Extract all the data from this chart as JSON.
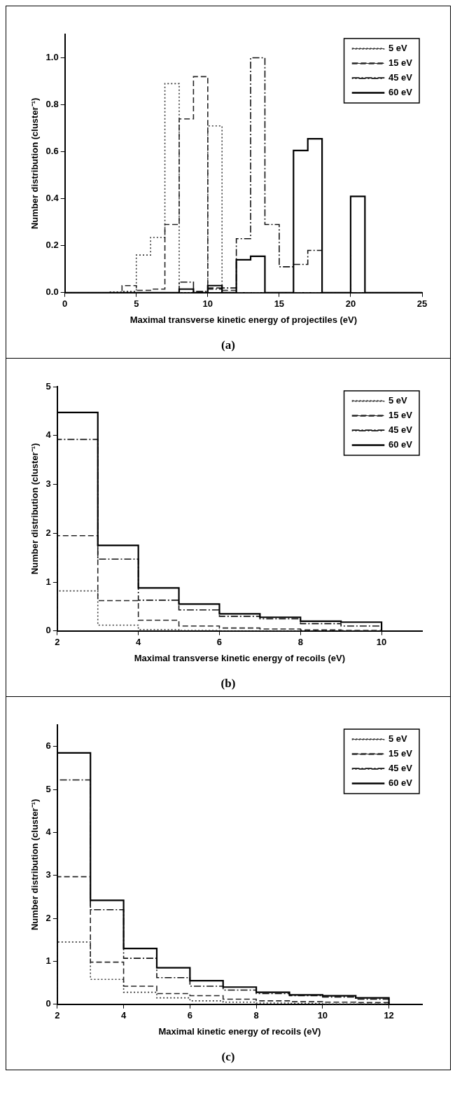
{
  "chart_data": [
    {
      "type": "histogram",
      "xlabel": "Maximal transverse kinetic energy of projectiles (eV)",
      "ylabel": "Number distribution (cluster⁻¹)",
      "bins": [
        0,
        1,
        2,
        3,
        4,
        5,
        6,
        7,
        8,
        9,
        10,
        11,
        12,
        13,
        14,
        15,
        16,
        17,
        18,
        19,
        20,
        21,
        22,
        23,
        24,
        25
      ],
      "series": [
        {
          "name": "5 eV",
          "color": "#3a3a3a",
          "line_style": "dotted",
          "values": [
            0,
            0,
            0,
            0.003,
            0.005,
            0.16,
            0.235,
            0.89,
            0,
            0,
            0.71,
            0,
            0,
            0,
            0,
            0,
            0,
            0,
            0,
            0,
            0,
            0,
            0,
            0,
            0
          ]
        },
        {
          "name": "15 eV",
          "color": "#262626",
          "line_style": "dashed",
          "values": [
            0,
            0,
            0,
            0,
            0.03,
            0.01,
            0.015,
            0.29,
            0.74,
            0.92,
            0.02,
            0.01,
            0,
            0,
            0,
            0,
            0,
            0,
            0,
            0,
            0,
            0,
            0,
            0,
            0
          ]
        },
        {
          "name": "45 eV",
          "color": "#131313",
          "line_style": "dashdot",
          "values": [
            0,
            0,
            0,
            0,
            0,
            0,
            0,
            0,
            0.045,
            0.005,
            0.015,
            0.02,
            0.23,
            1.0,
            0.29,
            0.11,
            0.12,
            0.18,
            0,
            0,
            0,
            0,
            0,
            0,
            0
          ]
        },
        {
          "name": "60 eV",
          "color": "#000000",
          "line_style": "solid",
          "values": [
            0,
            0,
            0,
            0,
            0,
            0,
            0,
            0,
            0.015,
            0,
            0.03,
            0,
            0.14,
            0.155,
            0,
            0,
            0.605,
            0.655,
            0,
            0,
            0.41,
            0,
            0,
            0,
            0
          ]
        }
      ],
      "xlim": [
        0,
        25
      ],
      "xticks": [
        0,
        5,
        10,
        15,
        20,
        25
      ],
      "ylim": [
        0,
        1.1
      ],
      "yticks": [
        {
          "value": 0,
          "label": "0.0"
        },
        {
          "value": 0.2,
          "label": "0.2"
        },
        {
          "value": 0.4,
          "label": "0.4"
        },
        {
          "value": 0.6,
          "label": "0.6"
        },
        {
          "value": 0.8,
          "label": "0.8"
        },
        {
          "value": 1,
          "label": "1.0"
        }
      ],
      "grid": false,
      "legend": "top right",
      "annotations": [
        "(a)"
      ]
    },
    {
      "type": "histogram",
      "xlabel": "Maximal transverse kinetic energy of recoils (eV)",
      "ylabel": "Number distribution (cluster⁻¹)",
      "bins": [
        2,
        3,
        4,
        5,
        6,
        7,
        8,
        9,
        10
      ],
      "series": [
        {
          "name": "5 eV",
          "color": "#3a3a3a",
          "line_style": "dotted",
          "values": [
            0.82,
            0.12,
            0.03,
            0.01,
            0,
            0,
            0,
            0
          ]
        },
        {
          "name": "15 eV",
          "color": "#262626",
          "line_style": "dashed",
          "values": [
            1.95,
            0.62,
            0.22,
            0.1,
            0.06,
            0.04,
            0.02,
            0.01
          ]
        },
        {
          "name": "45 eV",
          "color": "#131313",
          "line_style": "dashdot",
          "values": [
            3.92,
            1.47,
            0.63,
            0.43,
            0.3,
            0.25,
            0.15,
            0.1
          ]
        },
        {
          "name": "60 eV",
          "color": "#000000",
          "line_style": "solid",
          "values": [
            4.47,
            1.75,
            0.88,
            0.55,
            0.35,
            0.28,
            0.2,
            0.18
          ]
        }
      ],
      "xlim": [
        2,
        11
      ],
      "xticks": [
        2,
        4,
        6,
        8,
        10
      ],
      "ylim": [
        0,
        5
      ],
      "yticks": [
        0,
        1,
        2,
        3,
        4,
        5
      ],
      "grid": false,
      "legend": "top right",
      "annotations": [
        "(b)"
      ]
    },
    {
      "type": "histogram",
      "xlabel": "Maximal kinetic energy of recoils (eV)",
      "ylabel": "Number distribution (cluster⁻¹)",
      "bins": [
        2,
        3,
        4,
        5,
        6,
        7,
        8,
        9,
        10,
        11,
        12
      ],
      "series": [
        {
          "name": "5 eV",
          "color": "#3a3a3a",
          "line_style": "dotted",
          "values": [
            1.45,
            0.58,
            0.28,
            0.15,
            0.08,
            0.05,
            0.03,
            0.02,
            0.01,
            0.01
          ]
        },
        {
          "name": "15 eV",
          "color": "#262626",
          "line_style": "dashed",
          "values": [
            2.97,
            0.98,
            0.42,
            0.25,
            0.2,
            0.12,
            0.08,
            0.06,
            0.05,
            0.04
          ]
        },
        {
          "name": "45 eV",
          "color": "#131313",
          "line_style": "dashdot",
          "values": [
            5.22,
            2.2,
            1.07,
            0.62,
            0.42,
            0.33,
            0.25,
            0.2,
            0.17,
            0.12
          ]
        },
        {
          "name": "60 eV",
          "color": "#000000",
          "line_style": "solid",
          "values": [
            5.85,
            2.42,
            1.3,
            0.85,
            0.55,
            0.4,
            0.28,
            0.22,
            0.2,
            0.15
          ]
        }
      ],
      "xlim": [
        2,
        13
      ],
      "xticks": [
        2,
        4,
        6,
        8,
        10,
        12
      ],
      "ylim": [
        0,
        6.5
      ],
      "yticks": [
        0,
        1,
        2,
        3,
        4,
        5,
        6
      ],
      "grid": false,
      "legend": "top right",
      "annotations": [
        "(c)"
      ]
    }
  ]
}
